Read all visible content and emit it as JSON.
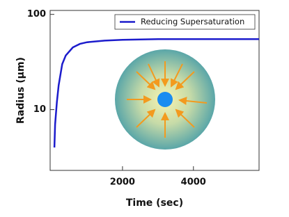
{
  "chart_data": {
    "type": "line",
    "xlabel": "Time (sec)",
    "ylabel": "Radius (μm)",
    "x": [
      80,
      100,
      150,
      200,
      300,
      400,
      600,
      800,
      1000,
      1500,
      2000,
      3000,
      4000,
      5000,
      5850
    ],
    "series": [
      {
        "name": "Reducing Supersaturation",
        "color": "#1c1ccc",
        "values": [
          4,
          7,
          12,
          18,
          30,
          37,
          45,
          49,
          51,
          53,
          54,
          55,
          55,
          55,
          55
        ]
      }
    ],
    "xlim": [
      -40,
      5850
    ],
    "ylim": [
      2.3,
      110
    ],
    "ylog": true,
    "xticks": [
      2000,
      4000
    ],
    "yticks": [
      10,
      100
    ],
    "legend": "upper right"
  }
}
